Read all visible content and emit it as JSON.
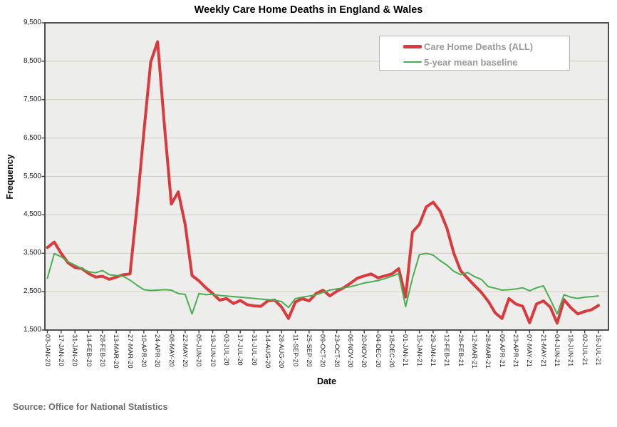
{
  "title": "Weekly Care Home Deaths in England & Wales",
  "source": "Source: Office for National Statistics",
  "axes": {
    "y_label": "Frequency",
    "x_label": "Date",
    "y_tick_labels": [
      "1,500",
      "2,500",
      "3,500",
      "4,500",
      "5,500",
      "6,500",
      "7,500",
      "8,500",
      "9,500"
    ],
    "x_tick_labels": [
      "03-JAN-20",
      "17-JAN-20",
      "31-JAN-20",
      "14-FEB-20",
      "28-FEB-20",
      "13-MAR-20",
      "27-MAR-20",
      "10-APR-20",
      "24-APR-20",
      "08-MAY-20",
      "22-MAY-20",
      "05-JUN-20",
      "19-JUN-20",
      "03-JUL-20",
      "17-JUL-20",
      "31-JUL-20",
      "14-AUG-20",
      "28-AUG-20",
      "11-SEP-20",
      "25-SEP-20",
      "09-OCT-20",
      "23-OCT-20",
      "06-NOV-20",
      "20-NOV-20",
      "04-DEC-20",
      "18-DEC-20",
      "01-JAN-21",
      "15-JAN-21",
      "29-JAN-21",
      "12-FEB-21",
      "26-FEB-21",
      "12-MAR-21",
      "26-MAR-21",
      "09-APR-21",
      "23-APR-21",
      "07-MAY-21",
      "21-MAY-21",
      "04-JUN-21",
      "18-JUN-21",
      "02-JUL-21",
      "16-JUL-21"
    ]
  },
  "legend": {
    "items": [
      {
        "label": "Care Home Deaths (ALL)"
      },
      {
        "label": "5-year mean baseline"
      }
    ]
  },
  "colors": {
    "deaths_line": "#d93a3e",
    "baseline_line": "#49ae52",
    "plot_background": "#ededeb",
    "gridline": "#d8d0b0",
    "plot_border": "#3c3c3c",
    "tick_text": "#1a1a1a",
    "legend_text": "#9b9b9b"
  },
  "chart_data": {
    "type": "line",
    "title": "Weekly Care Home Deaths in England & Wales",
    "xlabel": "Date",
    "ylabel": "Frequency",
    "ylim": [
      1500,
      9500
    ],
    "ytick_step": 1000,
    "grid": "horizontal-only",
    "legend_position": "top-right-inside",
    "x_resolution": "weekly points; axis labelled every 2 weeks",
    "weeks_between_ticks": 2,
    "points_per_series": 81,
    "x_tick_labels": [
      "03-JAN-20",
      "17-JAN-20",
      "31-JAN-20",
      "14-FEB-20",
      "28-FEB-20",
      "13-MAR-20",
      "27-MAR-20",
      "10-APR-20",
      "24-APR-20",
      "08-MAY-20",
      "22-MAY-20",
      "05-JUN-20",
      "19-JUN-20",
      "03-JUL-20",
      "17-JUL-20",
      "31-JUL-20",
      "14-AUG-20",
      "28-AUG-20",
      "11-SEP-20",
      "25-SEP-20",
      "09-OCT-20",
      "23-OCT-20",
      "06-NOV-20",
      "20-NOV-20",
      "04-DEC-20",
      "18-DEC-20",
      "01-JAN-21",
      "15-JAN-21",
      "29-JAN-21",
      "12-FEB-21",
      "26-FEB-21",
      "12-MAR-21",
      "26-MAR-21",
      "09-APR-21",
      "23-APR-21",
      "07-MAY-21",
      "21-MAY-21",
      "04-JUN-21",
      "18-JUN-21",
      "02-JUL-21",
      "16-JUL-21"
    ],
    "series": [
      {
        "name": "Care Home Deaths (ALL)",
        "color": "#d93a3e",
        "stroke_width": 4,
        "values": [
          3650,
          3790,
          3500,
          3250,
          3130,
          3100,
          2970,
          2880,
          2900,
          2820,
          2880,
          2940,
          2960,
          4700,
          6650,
          8480,
          9010,
          6800,
          4780,
          5100,
          4250,
          2920,
          2780,
          2600,
          2450,
          2280,
          2320,
          2190,
          2270,
          2160,
          2130,
          2120,
          2260,
          2280,
          2100,
          1800,
          2230,
          2320,
          2260,
          2450,
          2540,
          2390,
          2510,
          2600,
          2720,
          2850,
          2910,
          2960,
          2860,
          2910,
          2960,
          3100,
          2360,
          4050,
          4250,
          4710,
          4830,
          4600,
          4150,
          3500,
          3040,
          2850,
          2660,
          2480,
          2250,
          1950,
          1800,
          2320,
          2180,
          2120,
          1690,
          2180,
          2260,
          2100,
          1680,
          2290,
          2080,
          1920,
          1985,
          2030,
          2140
        ]
      },
      {
        "name": "5-year mean baseline",
        "color": "#49ae52",
        "stroke_width": 2,
        "values": [
          2850,
          3490,
          3410,
          3280,
          3190,
          3100,
          3020,
          2990,
          3050,
          2940,
          2920,
          2900,
          2800,
          2670,
          2550,
          2530,
          2540,
          2550,
          2540,
          2450,
          2430,
          1920,
          2450,
          2420,
          2430,
          2400,
          2385,
          2370,
          2355,
          2340,
          2325,
          2305,
          2290,
          2280,
          2240,
          2090,
          2320,
          2355,
          2385,
          2420,
          2480,
          2540,
          2570,
          2600,
          2630,
          2675,
          2725,
          2755,
          2790,
          2840,
          2900,
          2970,
          2110,
          2850,
          3460,
          3500,
          3450,
          3310,
          3190,
          3030,
          2940,
          3000,
          2890,
          2820,
          2630,
          2590,
          2540,
          2550,
          2570,
          2600,
          2520,
          2600,
          2650,
          2300,
          1920,
          2420,
          2355,
          2325,
          2355,
          2370,
          2390
        ]
      }
    ]
  }
}
